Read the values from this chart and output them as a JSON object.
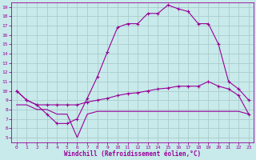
{
  "xlabel": "Windchill (Refroidissement éolien,°C)",
  "bg_color": "#c8eaea",
  "line_color": "#990099",
  "grid_color": "#aacccc",
  "xlim": [
    -0.5,
    23.5
  ],
  "ylim": [
    4.5,
    19.5
  ],
  "xticks": [
    0,
    1,
    2,
    3,
    4,
    5,
    6,
    7,
    8,
    9,
    10,
    11,
    12,
    13,
    14,
    15,
    16,
    17,
    18,
    19,
    20,
    21,
    22,
    23
  ],
  "yticks": [
    5,
    6,
    7,
    8,
    9,
    10,
    11,
    12,
    13,
    14,
    15,
    16,
    17,
    18,
    19
  ],
  "curve1_x": [
    0,
    1,
    2,
    3,
    4,
    5,
    6,
    7,
    8,
    9,
    10,
    11,
    12,
    13,
    14,
    15,
    16,
    17,
    18,
    19,
    20,
    21,
    22,
    23
  ],
  "curve1_y": [
    10.0,
    9.0,
    8.5,
    7.5,
    6.5,
    6.5,
    7.0,
    9.2,
    11.5,
    14.2,
    16.8,
    17.2,
    17.2,
    18.3,
    18.3,
    19.2,
    18.8,
    18.5,
    17.2,
    17.2,
    15.0,
    11.0,
    10.2,
    9.0
  ],
  "curve2_x": [
    0,
    1,
    2,
    3,
    4,
    5,
    6,
    7,
    8,
    9,
    10,
    11,
    12,
    13,
    14,
    15,
    16,
    17,
    18,
    19,
    20,
    21,
    22,
    23
  ],
  "curve2_y": [
    10.0,
    9.0,
    8.5,
    8.5,
    8.5,
    8.5,
    8.5,
    8.8,
    9.0,
    9.2,
    9.5,
    9.7,
    9.8,
    10.0,
    10.2,
    10.3,
    10.5,
    10.5,
    10.5,
    11.0,
    10.5,
    10.2,
    9.5,
    7.5
  ],
  "curve3_x": [
    0,
    1,
    2,
    3,
    4,
    5,
    6,
    7,
    8,
    9,
    10,
    11,
    12,
    13,
    14,
    15,
    16,
    17,
    18,
    19,
    20,
    21,
    22,
    23
  ],
  "curve3_y": [
    8.5,
    8.5,
    8.0,
    8.0,
    7.5,
    7.5,
    5.0,
    7.5,
    7.8,
    7.8,
    7.8,
    7.8,
    7.8,
    7.8,
    7.8,
    7.8,
    7.8,
    7.8,
    7.8,
    7.8,
    7.8,
    7.8,
    7.8,
    7.5
  ]
}
